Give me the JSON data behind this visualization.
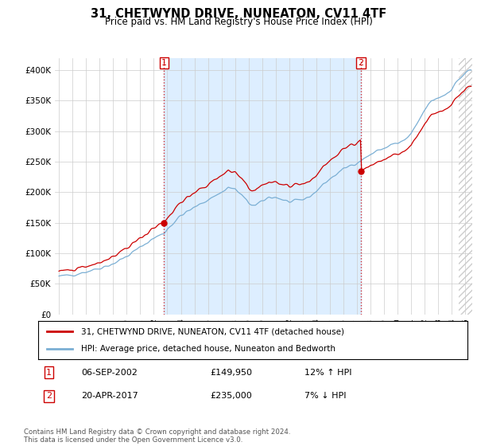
{
  "title": "31, CHETWYND DRIVE, NUNEATON, CV11 4TF",
  "subtitle": "Price paid vs. HM Land Registry's House Price Index (HPI)",
  "hpi_label": "HPI: Average price, detached house, Nuneaton and Bedworth",
  "prop_label": "31, CHETWYND DRIVE, NUNEATON, CV11 4TF (detached house)",
  "sale1_date": "06-SEP-2002",
  "sale1_price": 149950,
  "sale1_hpi_pct": "12% ↑ HPI",
  "sale2_date": "20-APR-2017",
  "sale2_price": 235000,
  "sale2_hpi_pct": "7% ↓ HPI",
  "footer": "Contains HM Land Registry data © Crown copyright and database right 2024.\nThis data is licensed under the Open Government Licence v3.0.",
  "prop_color": "#cc0000",
  "hpi_color": "#7bafd4",
  "fill_color": "#ddeeff",
  "sale1_x": 2002.75,
  "sale2_x": 2017.29,
  "ylim_max": 420000,
  "ylim_min": 0,
  "xlim_min": 1994.7,
  "xlim_max": 2025.5,
  "yticks": [
    0,
    50000,
    100000,
    150000,
    200000,
    250000,
    300000,
    350000,
    400000
  ],
  "ytick_labels": [
    "£0",
    "£50K",
    "£100K",
    "£150K",
    "£200K",
    "£250K",
    "£300K",
    "£350K",
    "£400K"
  ]
}
